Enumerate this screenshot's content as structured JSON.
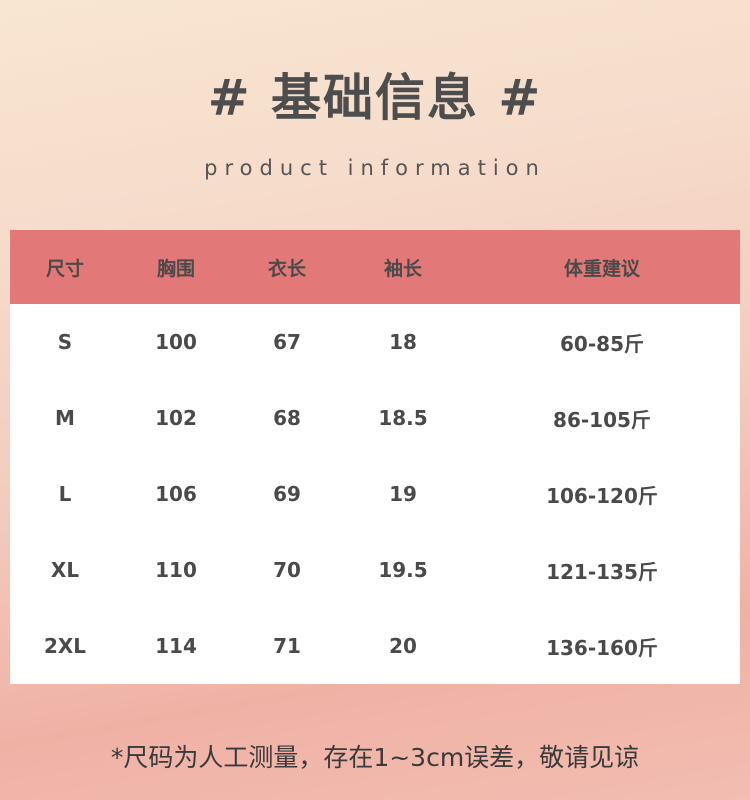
{
  "title": "# 基础信息 #",
  "subtitle": "product information",
  "table": {
    "headers": [
      "尺寸",
      "胸围",
      "衣长",
      "袖长",
      "体重建议"
    ],
    "rows": [
      [
        "S",
        "100",
        "67",
        "18",
        "60-85斤"
      ],
      [
        "M",
        "102",
        "68",
        "18.5",
        "86-105斤"
      ],
      [
        "L",
        "106",
        "69",
        "19",
        "106-120斤"
      ],
      [
        "XL",
        "110",
        "70",
        "19.5",
        "121-135斤"
      ],
      [
        "2XL",
        "114",
        "71",
        "20",
        "136-160斤"
      ]
    ]
  },
  "note": "*尺码为人工测量，存在1~3cm误差，敬请见谅",
  "colors": {
    "header": "#e27877",
    "text": "#4a4a4a"
  }
}
